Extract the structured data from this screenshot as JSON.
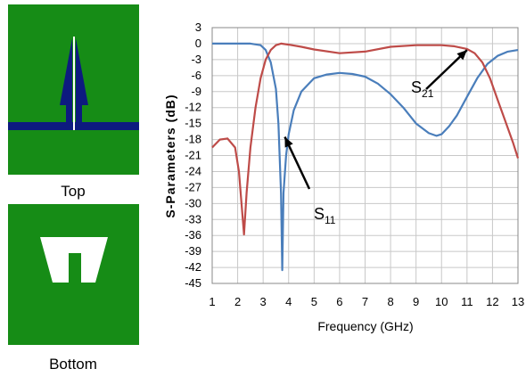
{
  "panels": {
    "top_caption": "Top",
    "bottom_caption": "Bottom",
    "substrate_color": "#168c16",
    "trace_color": "#0d1a7f",
    "slot_color": "#ffffff"
  },
  "chart_data": {
    "type": "line",
    "title": "",
    "xlabel": "Frequency (GHz)",
    "ylabel": "S-Parameters (dB)",
    "xlim": [
      1,
      13
    ],
    "ylim": [
      -45,
      3
    ],
    "xticks": [
      1,
      2,
      3,
      4,
      5,
      6,
      7,
      8,
      9,
      10,
      11,
      12,
      13
    ],
    "yticks": [
      3,
      0,
      -3,
      -6,
      -9,
      -12,
      -15,
      -18,
      -21,
      -24,
      -27,
      -30,
      -33,
      -36,
      -39,
      -42,
      -45
    ],
    "grid": true,
    "series": [
      {
        "name": "S11",
        "color": "#4a7ebb",
        "x": [
          1,
          1.5,
          2,
          2.5,
          2.9,
          3.1,
          3.3,
          3.5,
          3.6,
          3.7,
          3.75,
          3.8,
          3.9,
          4.0,
          4.2,
          4.5,
          5,
          5.5,
          6,
          6.5,
          7,
          7.5,
          8,
          8.5,
          9,
          9.5,
          9.8,
          10,
          10.3,
          10.6,
          11,
          11.4,
          11.8,
          12.2,
          12.6,
          13
        ],
        "y": [
          0,
          0,
          0,
          0,
          -0.3,
          -1.2,
          -3.5,
          -8.5,
          -15,
          -28,
          -42.5,
          -28,
          -21,
          -17,
          -12.5,
          -9,
          -6.5,
          -5.8,
          -5.5,
          -5.7,
          -6.2,
          -7.5,
          -9.5,
          -12,
          -15,
          -16.8,
          -17.3,
          -17,
          -15.5,
          -13.5,
          -10,
          -6.5,
          -3.8,
          -2.3,
          -1.5,
          -1.2
        ]
      },
      {
        "name": "S21",
        "color": "#be4b48",
        "x": [
          1,
          1.3,
          1.6,
          1.9,
          2.05,
          2.15,
          2.25,
          2.35,
          2.5,
          2.7,
          2.9,
          3.1,
          3.3,
          3.5,
          3.7,
          4,
          4.5,
          5,
          6,
          7,
          8,
          9,
          10,
          10.5,
          11,
          11.3,
          11.6,
          11.9,
          12.2,
          12.5,
          12.8,
          13
        ],
        "y": [
          -19.5,
          -18,
          -17.8,
          -19.5,
          -24,
          -30,
          -35.8,
          -28,
          -19.5,
          -12,
          -6.5,
          -3,
          -1.2,
          -0.3,
          0,
          -0.2,
          -0.6,
          -1.1,
          -1.8,
          -1.5,
          -0.6,
          -0.3,
          -0.3,
          -0.5,
          -1.0,
          -1.8,
          -3.5,
          -6.5,
          -10.5,
          -14.5,
          -18.5,
          -21.5
        ]
      }
    ],
    "annotations": [
      {
        "label": "S",
        "sub": "11",
        "target": [
          3.85,
          -17.5
        ]
      },
      {
        "label": "S",
        "sub": "21",
        "target": [
          11.0,
          -1.2
        ]
      }
    ]
  }
}
